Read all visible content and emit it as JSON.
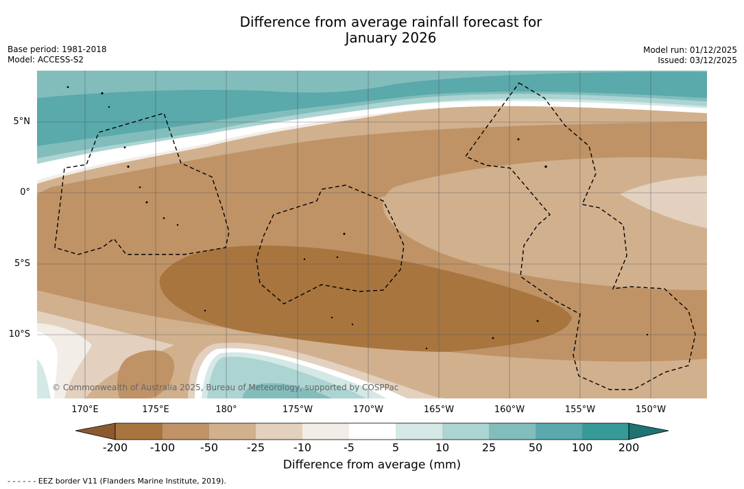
{
  "title": {
    "line1": "Difference from average rainfall forecast for",
    "line2": "January 2026"
  },
  "meta": {
    "base_period": "Base period: 1981-2018",
    "model": "Model: ACCESS-S2",
    "model_run": "Model run: 01/12/2025",
    "issued": "Issued: 03/12/2025"
  },
  "map": {
    "lat_labels": [
      "5°N",
      "0°",
      "5°S",
      "10°S"
    ],
    "lon_labels": [
      "170°E",
      "175°E",
      "180°",
      "175°W",
      "170°W",
      "165°W",
      "160°W",
      "155°W",
      "150°W"
    ],
    "copyright": "© Commonwealth of Australia 2025, Bureau of Meteorology, supported by COSPPac"
  },
  "colorbar": {
    "ticks": [
      "-200",
      "-100",
      "-50",
      "-25",
      "-10",
      "-5",
      "5",
      "10",
      "25",
      "50",
      "100",
      "200"
    ],
    "colors": {
      "below_200": "#8c5a2e",
      "m200_m100": "#a8753f",
      "m100_m50": "#bf9366",
      "m50_m25": "#d1b08e",
      "m25_m10": "#e3d0bf",
      "m10_m5": "#f3ede8",
      "m5_5": "#ffffff",
      "5_10": "#d4e8e6",
      "10_25": "#abd4d2",
      "25_50": "#82bdbc",
      "50_100": "#5aa9ab",
      "100_200": "#369a99",
      "above_200": "#1f7372"
    },
    "label": "Difference from average (mm)"
  },
  "footer": "- -  - -  - - EEZ border V11 (Flanders Marine Institute, 2019)."
}
